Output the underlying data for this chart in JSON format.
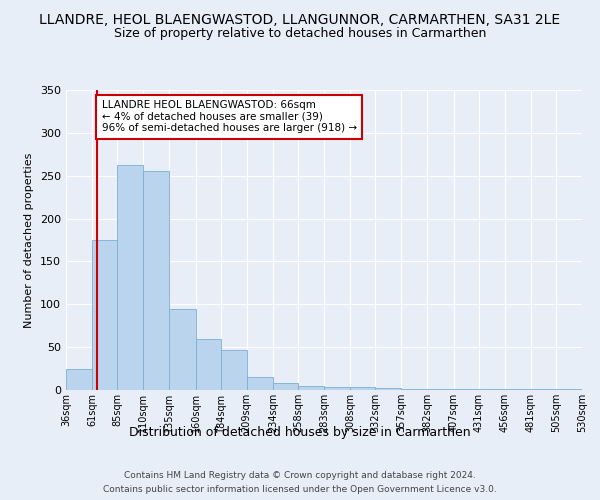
{
  "title1": "LLANDRE, HEOL BLAENGWASTOD, LLANGUNNOR, CARMARTHEN, SA31 2LE",
  "title2": "Size of property relative to detached houses in Carmarthen",
  "xlabel": "Distribution of detached houses by size in Carmarthen",
  "ylabel": "Number of detached properties",
  "bin_edges": [
    36,
    61,
    85,
    110,
    135,
    160,
    184,
    209,
    234,
    258,
    283,
    308,
    332,
    357,
    382,
    407,
    431,
    456,
    481,
    505,
    530
  ],
  "bar_heights": [
    25,
    175,
    263,
    255,
    95,
    60,
    47,
    15,
    8,
    5,
    4,
    3,
    2,
    1,
    1,
    1,
    1,
    1,
    1,
    1
  ],
  "bar_color": "#bad4ee",
  "bar_edge_color": "#7aafd4",
  "property_size": 66,
  "ylim": [
    0,
    350
  ],
  "yticks": [
    0,
    50,
    100,
    150,
    200,
    250,
    300,
    350
  ],
  "annotation_text": "LLANDRE HEOL BLAENGWASTOD: 66sqm\n← 4% of detached houses are smaller (39)\n96% of semi-detached houses are larger (918) →",
  "annotation_box_color": "#ffffff",
  "annotation_box_edge_color": "#cc0000",
  "red_line_color": "#cc0000",
  "footer1": "Contains HM Land Registry data © Crown copyright and database right 2024.",
  "footer2": "Contains public sector information licensed under the Open Government Licence v3.0.",
  "bg_color": "#e8eef8",
  "grid_color": "#ffffff",
  "title_fontsize": 10,
  "subtitle_fontsize": 9,
  "annotation_fontsize": 7.5,
  "ylabel_fontsize": 8,
  "xlabel_fontsize": 9,
  "ytick_fontsize": 8,
  "xtick_fontsize": 7
}
